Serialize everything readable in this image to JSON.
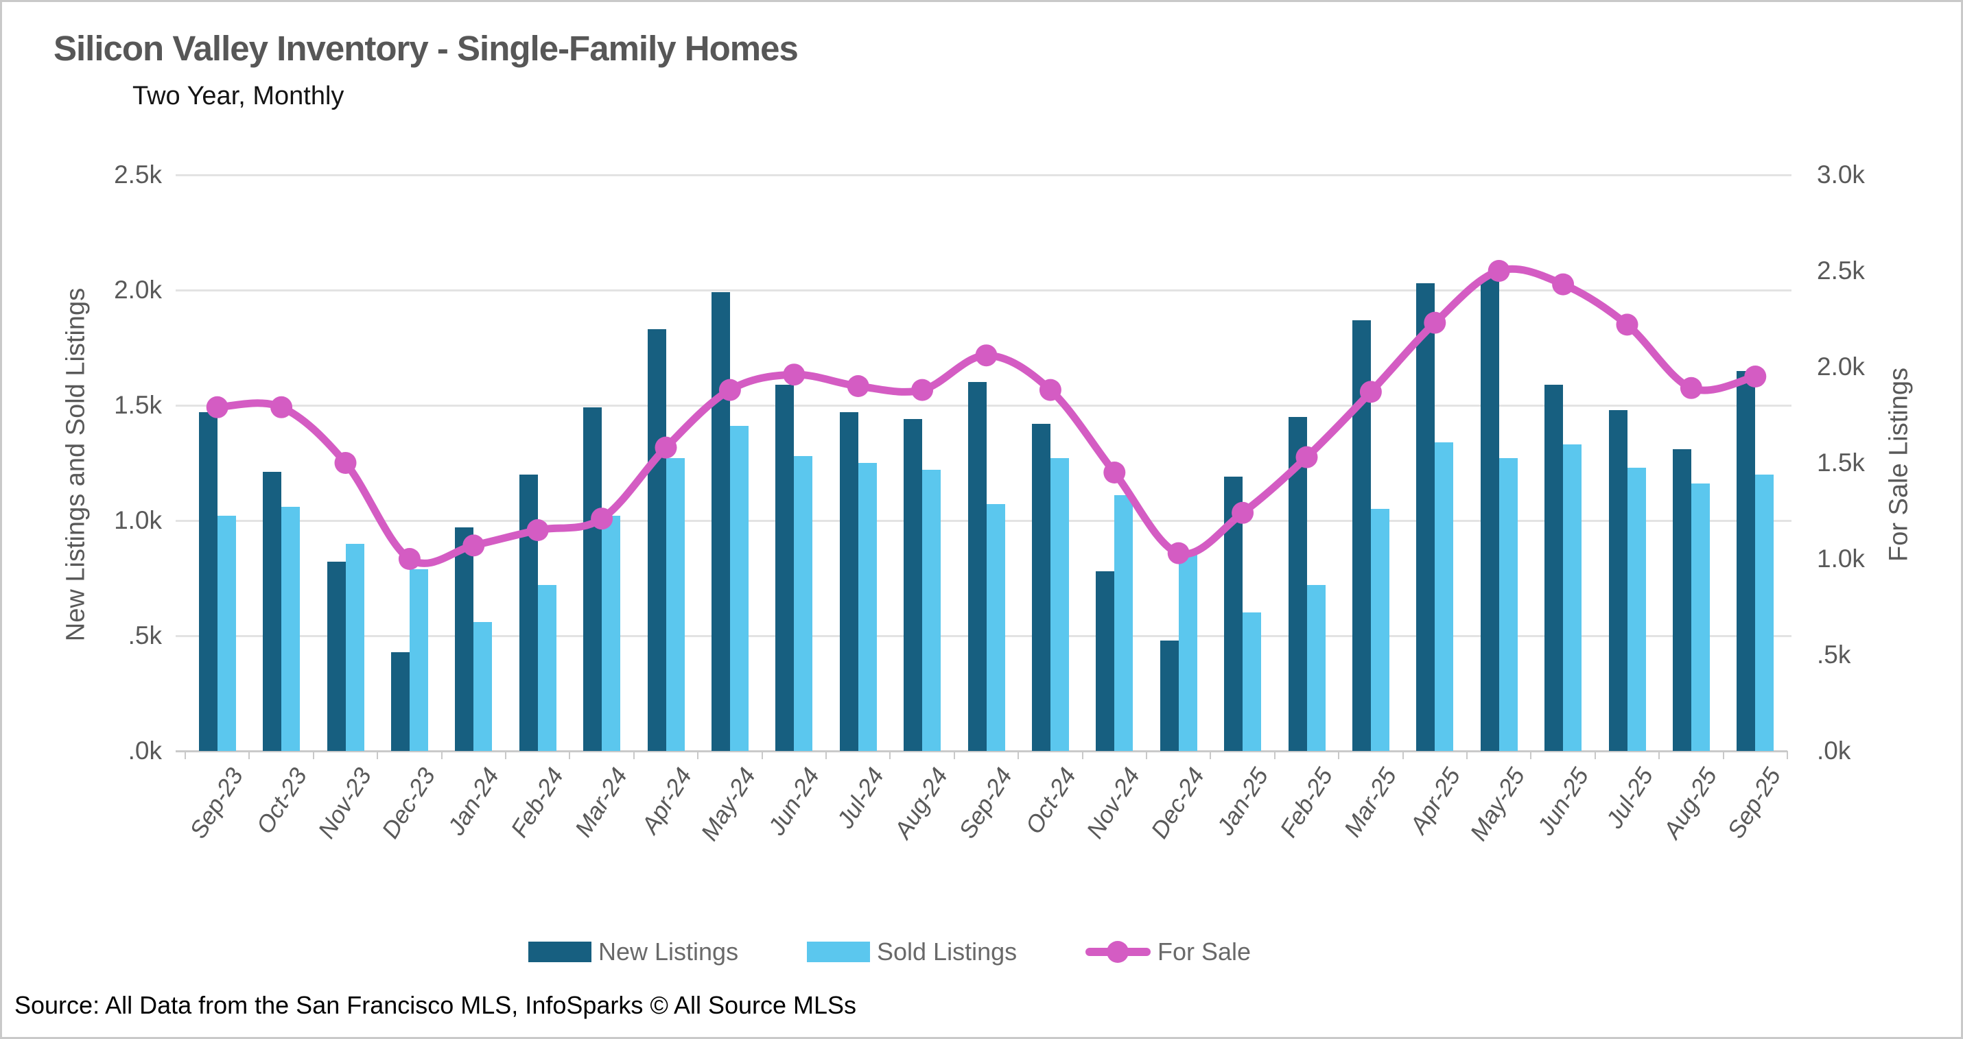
{
  "title": "Silicon Valley Inventory - Single-Family Homes",
  "subtitle": "Two Year, Monthly",
  "source_note": "Source: All Data from the San Francisco MLS, InfoSparks © All Source MLSs",
  "colors": {
    "new_listings": "#175F80",
    "sold_listings": "#5BC7EE",
    "for_sale": "#D45CC3",
    "gridline": "#e3e3e3",
    "axis_text": "#595959",
    "legend_text": "#696969"
  },
  "left_axis": {
    "title": "New Listings and Sold Listings",
    "tick_labels": [
      "2.5k",
      "2.0k",
      "1.5k",
      "1.0k",
      ".5k",
      ".0k"
    ],
    "max": 2500
  },
  "right_axis": {
    "title": "For Sale Listings",
    "tick_labels": [
      "3.0k",
      "2.5k",
      "2.0k",
      "1.5k",
      "1.0k",
      ".5k",
      ".0k"
    ],
    "max": 3000
  },
  "legend": [
    {
      "label": "New Listings",
      "type": "bar",
      "color": "#175F80"
    },
    {
      "label": "Sold Listings",
      "type": "bar",
      "color": "#5BC7EE"
    },
    {
      "label": "For Sale",
      "type": "line",
      "color": "#D45CC3"
    }
  ],
  "chart_data": {
    "type": "bar+line",
    "title": "Silicon Valley Inventory - Single-Family Homes",
    "subtitle": "Two Year, Monthly",
    "categories": [
      "Sep-23",
      "Oct-23",
      "Nov-23",
      "Dec-23",
      "Jan-24",
      "Feb-24",
      "Mar-24",
      "Apr-24",
      "May-24",
      "Jun-24",
      "Jul-24",
      "Aug-24",
      "Sep-24",
      "Oct-24",
      "Nov-24",
      "Dec-24",
      "Jan-25",
      "Feb-25",
      "Mar-25",
      "Apr-25",
      "May-25",
      "Jun-25",
      "Jul-25",
      "Aug-25",
      "Sep-25"
    ],
    "series": [
      {
        "name": "New Listings",
        "type": "bar",
        "axis": "left",
        "color": "#175F80",
        "values": [
          1470,
          1210,
          820,
          430,
          970,
          1200,
          1490,
          1830,
          1990,
          1590,
          1470,
          1440,
          1600,
          1420,
          780,
          480,
          1190,
          1450,
          1870,
          2030,
          2050,
          1590,
          1480,
          1310,
          1650
        ]
      },
      {
        "name": "Sold Listings",
        "type": "bar",
        "axis": "left",
        "color": "#5BC7EE",
        "values": [
          1020,
          1060,
          900,
          790,
          560,
          720,
          1020,
          1270,
          1410,
          1280,
          1250,
          1220,
          1070,
          1270,
          1110,
          850,
          600,
          720,
          1050,
          1340,
          1270,
          1330,
          1230,
          1160,
          1200
        ]
      },
      {
        "name": "For Sale",
        "type": "line",
        "axis": "right",
        "color": "#D45CC3",
        "values": [
          1790,
          1790,
          1500,
          1000,
          1070,
          1150,
          1210,
          1580,
          1880,
          1960,
          1900,
          1880,
          2060,
          1880,
          1450,
          1030,
          1240,
          1530,
          1870,
          2230,
          2500,
          2430,
          2220,
          1890,
          1950
        ]
      }
    ],
    "left_ylim": [
      0,
      2500
    ],
    "right_ylim": [
      0,
      3000
    ],
    "grid": true,
    "legend_position": "bottom"
  },
  "layout_note": ""
}
